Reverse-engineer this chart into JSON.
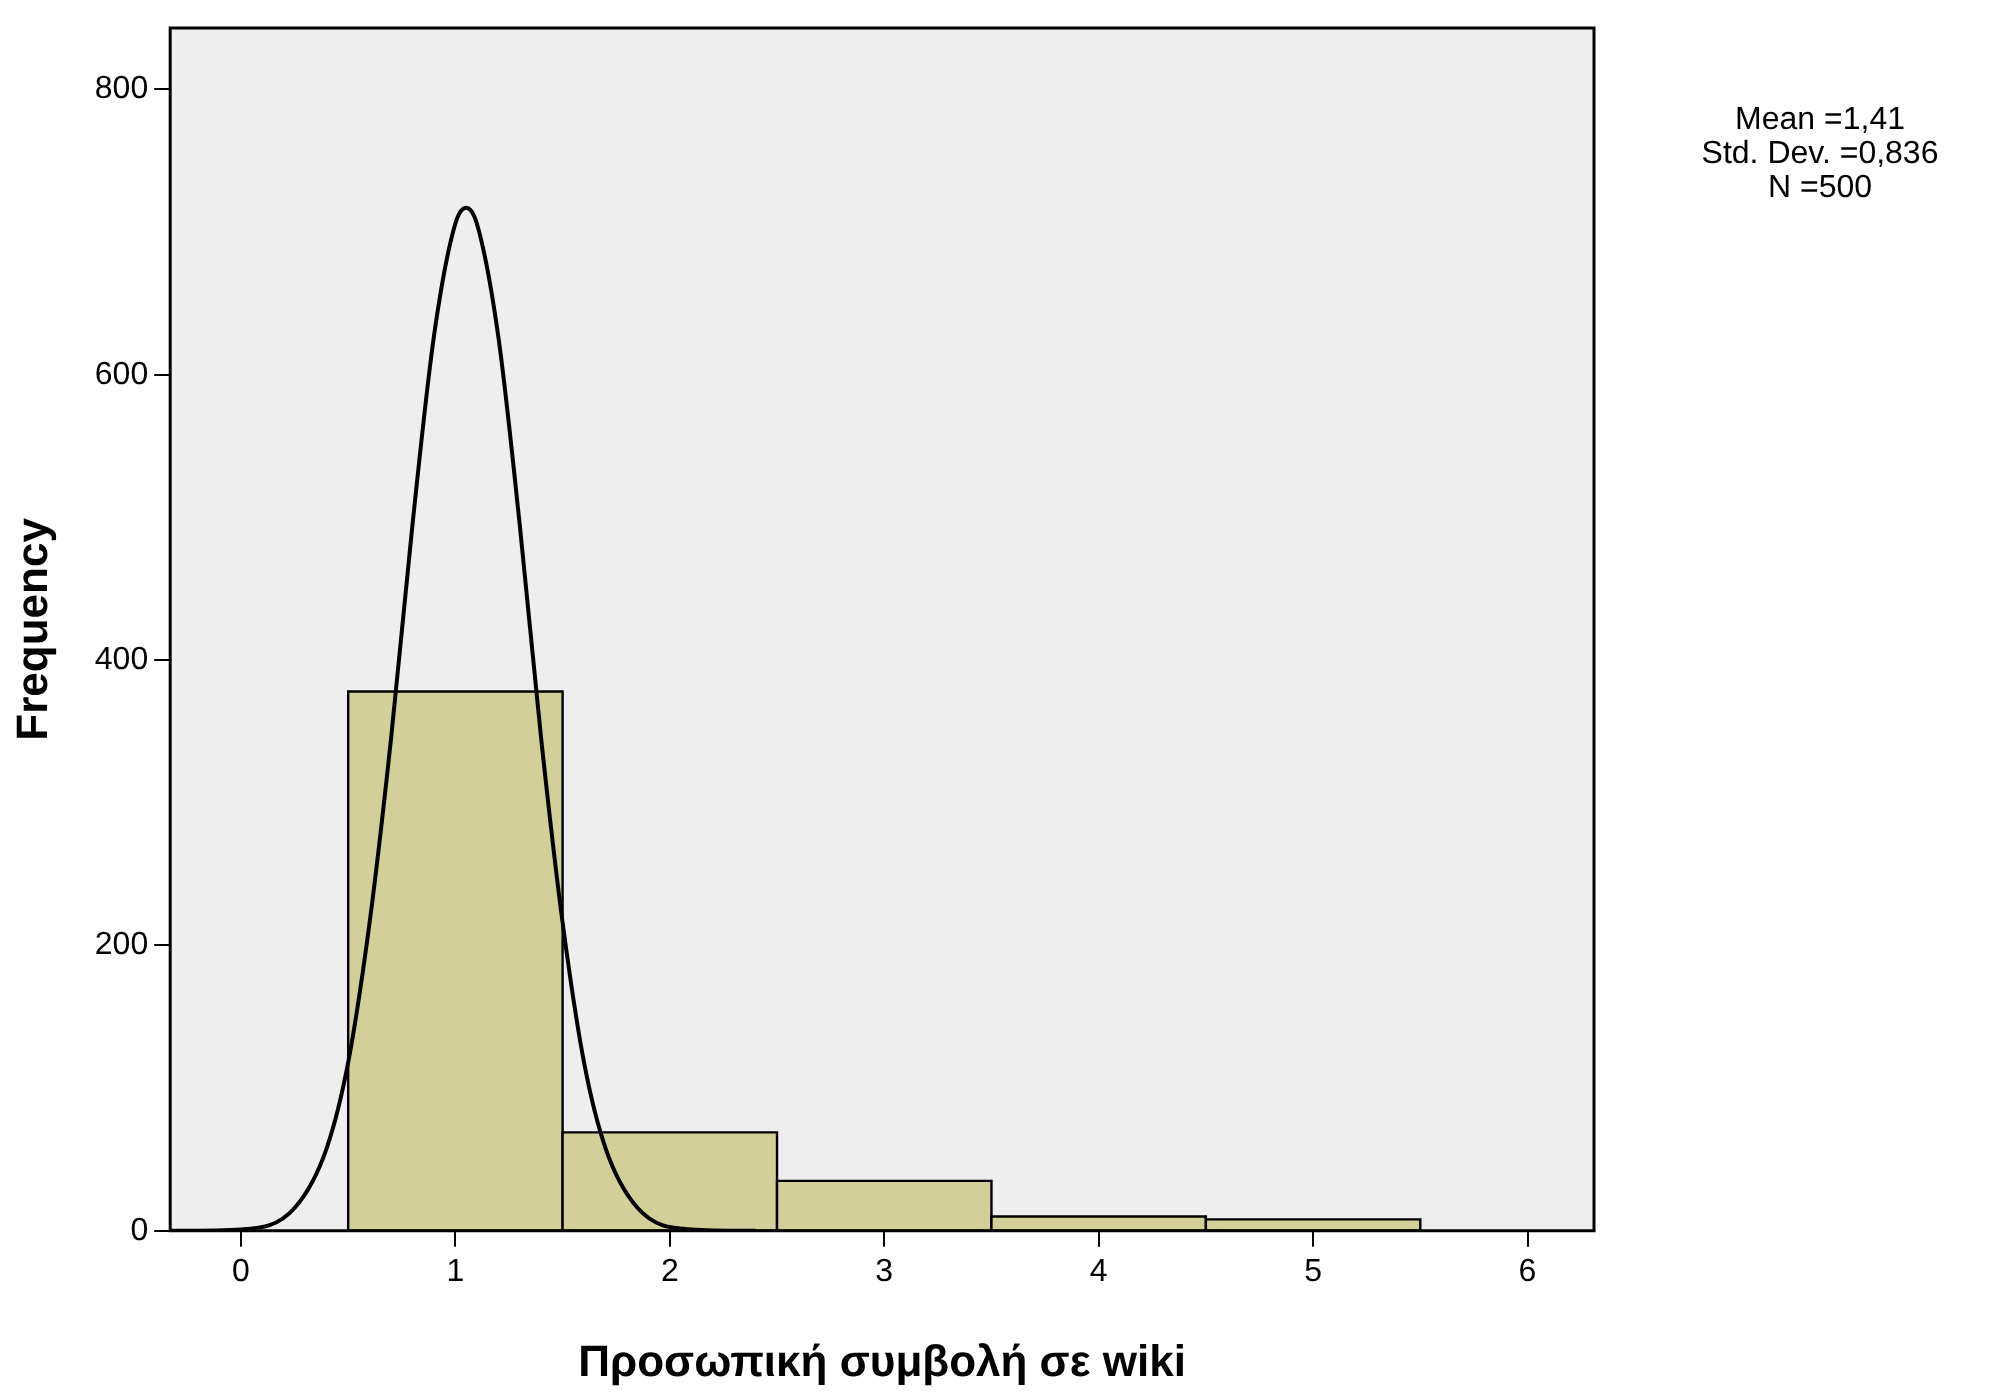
{
  "chart_data": {
    "type": "histogram",
    "xlabel": "Προσωπική συμβολή σε wiki",
    "ylabel": "Frequency",
    "annotations": [
      "Mean =1,41",
      "Std. Dev. =0,836",
      "N =500"
    ],
    "xlim": [
      -0.33,
      6.31
    ],
    "xticks": [
      0,
      1,
      2,
      3,
      4,
      5,
      6
    ],
    "ylim": [
      0,
      843
    ],
    "yticks": [
      0,
      200,
      400,
      600,
      800
    ],
    "series": [
      {
        "bins": [
          0.5,
          1.5,
          2.5,
          3.5,
          4.5,
          5.5
        ],
        "values": [
          378,
          69,
          35,
          10,
          8
        ],
        "color": "#d3cf98"
      },
      {
        "type": "line",
        "color": "#000000",
        "x": [
          -0.33,
          0,
          0.25,
          0.4,
          0.5,
          0.6,
          0.7,
          0.8,
          0.9,
          1.0,
          1.05,
          1.1,
          1.2,
          1.3,
          1.4,
          1.5,
          1.6,
          1.7,
          1.85,
          2.1,
          2.4
        ],
        "values": [
          0,
          1,
          16,
          58,
          118,
          216,
          345,
          495,
          627,
          706,
          717,
          706,
          627,
          495,
          345,
          216,
          118,
          58,
          16,
          1,
          0
        ]
      }
    ]
  }
}
